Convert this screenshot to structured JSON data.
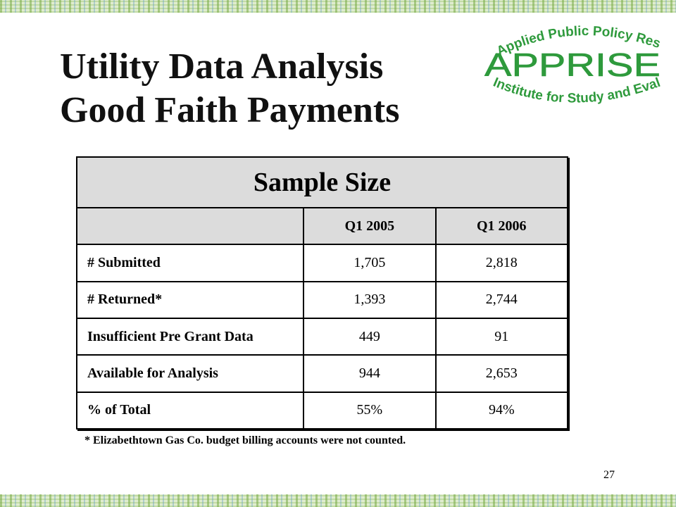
{
  "title": {
    "line1": "Utility Data Analysis",
    "line2": "Good Faith Payments"
  },
  "logo": {
    "top_text": "Applied Public Policy Research",
    "name": "APPRISE",
    "bottom_text": "Institute for Study and Evaluation",
    "color": "#2e9a3c"
  },
  "table": {
    "header": "Sample Size",
    "columns": [
      "Q1 2005",
      "Q1 2006"
    ],
    "rows": [
      {
        "label": "# Submitted",
        "values": [
          "1,705",
          "2,818"
        ]
      },
      {
        "label": "# Returned*",
        "values": [
          "1,393",
          "2,744"
        ]
      },
      {
        "label": "Insufficient Pre Grant Data",
        "values": [
          "449",
          "91"
        ]
      },
      {
        "label": "Available for Analysis",
        "values": [
          "944",
          "2,653"
        ]
      },
      {
        "label": "% of Total",
        "values": [
          "55%",
          "94%"
        ]
      }
    ]
  },
  "footnote": "* Elizabethtown Gas Co. budget billing accounts were not counted.",
  "page_number": "27"
}
